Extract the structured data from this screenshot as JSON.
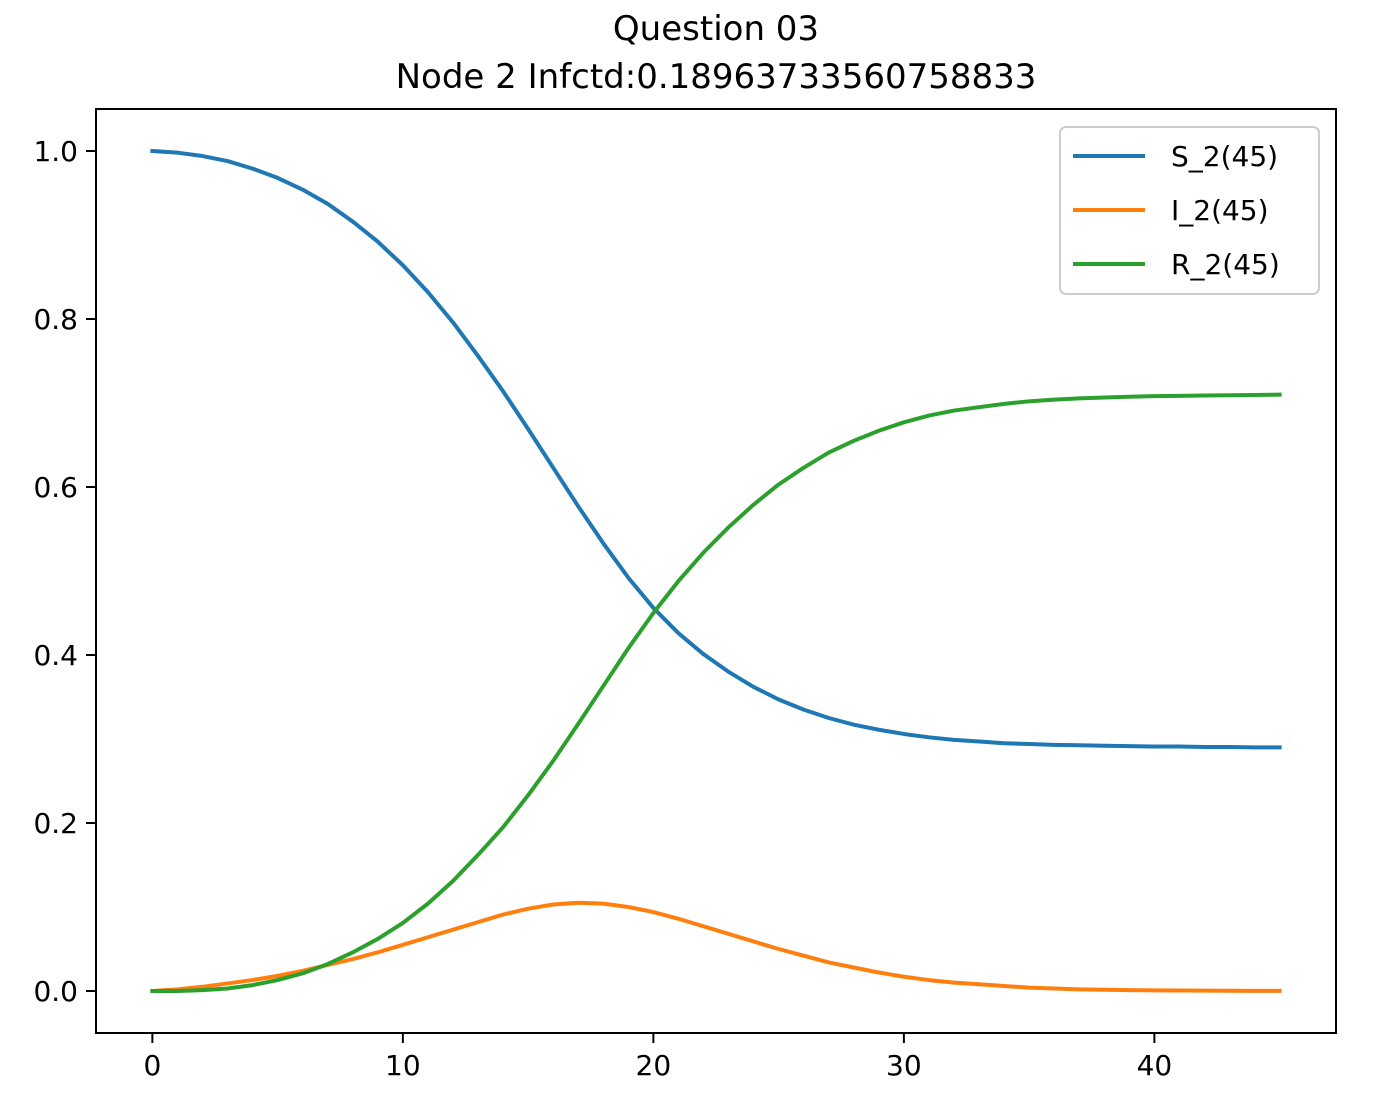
{
  "chart_data": {
    "type": "line",
    "title": "Question 03",
    "subtitle": "Node 2 Infctd:0.18963733560758833",
    "xlabel": "",
    "ylabel": "",
    "xlim": [
      -2.25,
      47.25
    ],
    "ylim": [
      -0.05,
      1.05
    ],
    "x_ticks": [
      0,
      10,
      20,
      30,
      40
    ],
    "y_ticks": [
      0.0,
      0.2,
      0.4,
      0.6,
      0.8,
      1.0
    ],
    "x_tick_labels": [
      "0",
      "10",
      "20",
      "30",
      "40"
    ],
    "y_tick_labels": [
      "0.0",
      "0.2",
      "0.4",
      "0.6",
      "0.8",
      "1.0"
    ],
    "grid": false,
    "legend_position": "top-right",
    "x": [
      0,
      1,
      2,
      3,
      4,
      5,
      6,
      7,
      8,
      9,
      10,
      11,
      12,
      13,
      14,
      15,
      16,
      17,
      18,
      19,
      20,
      21,
      22,
      23,
      24,
      25,
      26,
      27,
      28,
      29,
      30,
      31,
      32,
      33,
      34,
      35,
      36,
      37,
      38,
      39,
      40,
      41,
      42,
      43,
      44,
      45
    ],
    "series": [
      {
        "name": "S_2(45)",
        "color": "#1f77b4",
        "values": [
          1.0,
          0.998,
          0.994,
          0.988,
          0.979,
          0.968,
          0.954,
          0.937,
          0.916,
          0.892,
          0.864,
          0.832,
          0.796,
          0.756,
          0.714,
          0.669,
          0.623,
          0.577,
          0.533,
          0.492,
          0.456,
          0.426,
          0.401,
          0.38,
          0.362,
          0.347,
          0.335,
          0.325,
          0.317,
          0.311,
          0.306,
          0.302,
          0.299,
          0.297,
          0.295,
          0.294,
          0.293,
          0.2925,
          0.292,
          0.2915,
          0.291,
          0.291,
          0.2905,
          0.2905,
          0.29,
          0.29
        ]
      },
      {
        "name": "I_2(45)",
        "color": "#ff7f0e",
        "values": [
          0.0,
          0.002,
          0.005,
          0.009,
          0.013,
          0.018,
          0.024,
          0.031,
          0.038,
          0.046,
          0.055,
          0.064,
          0.073,
          0.082,
          0.091,
          0.098,
          0.103,
          0.105,
          0.104,
          0.1,
          0.094,
          0.086,
          0.077,
          0.068,
          0.059,
          0.05,
          0.042,
          0.034,
          0.028,
          0.022,
          0.017,
          0.013,
          0.01,
          0.008,
          0.006,
          0.004,
          0.003,
          0.002,
          0.0015,
          0.001,
          0.0008,
          0.0006,
          0.0004,
          0.0003,
          0.0002,
          0.0001
        ]
      },
      {
        "name": "R_2(45)",
        "color": "#2ca02c",
        "values": [
          0.0,
          0.0,
          0.001,
          0.003,
          0.007,
          0.013,
          0.021,
          0.032,
          0.046,
          0.062,
          0.081,
          0.104,
          0.131,
          0.162,
          0.195,
          0.233,
          0.274,
          0.318,
          0.363,
          0.408,
          0.45,
          0.488,
          0.522,
          0.552,
          0.579,
          0.603,
          0.623,
          0.641,
          0.655,
          0.667,
          0.677,
          0.685,
          0.691,
          0.695,
          0.699,
          0.702,
          0.704,
          0.7055,
          0.7065,
          0.7075,
          0.7082,
          0.7085,
          0.709,
          0.7093,
          0.7096,
          0.71
        ]
      }
    ]
  }
}
